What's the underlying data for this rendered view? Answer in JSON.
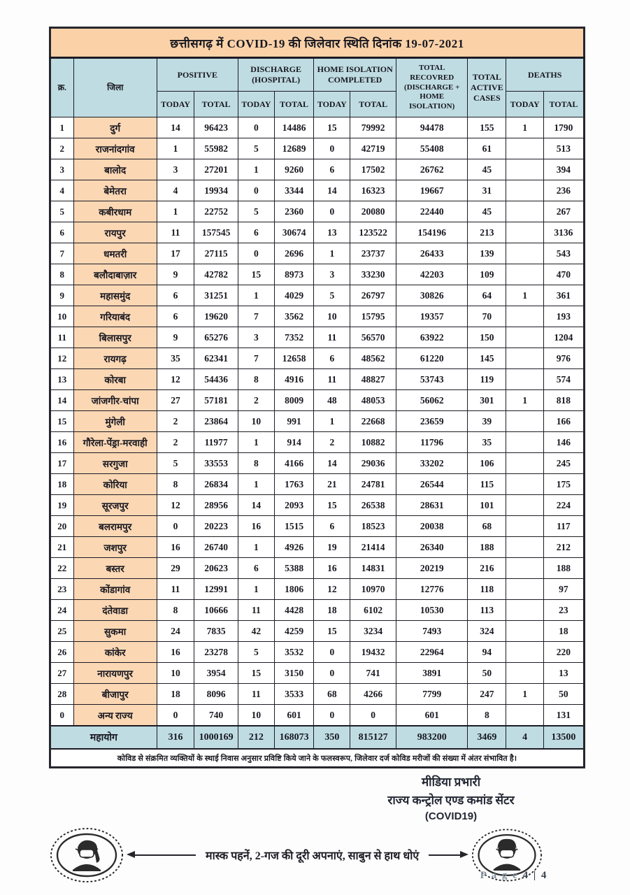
{
  "title": "छत्तीसगढ़ में COVID-19 की जिलेवार स्थिति दिनांक 19-07-2021",
  "colors": {
    "title_peach": "#FBD2A8",
    "district_peach": "#FBD7B4",
    "header_blue": "#BFDCE2",
    "border_dark": "#1c1c24"
  },
  "header": {
    "sn": "क्र.",
    "district": "जिला",
    "positive": "POSITIVE",
    "discharge": "DISCHARGE\n(HOSPITAL)",
    "home_isolation": "HOME ISOLATION\nCOMPLETED",
    "recovered": "TOTAL\nRECOVRED\n(DISCHARGE +\nHOME ISOLATION)",
    "active": "TOTAL\nACTIVE\nCASES",
    "deaths": "DEATHS",
    "today": "TODAY",
    "total": "TOTAL"
  },
  "rows": [
    [
      "1",
      "दुर्ग",
      "14",
      "96423",
      "0",
      "14486",
      "15",
      "79992",
      "94478",
      "155",
      "1",
      "1790"
    ],
    [
      "2",
      "राजनांदगांव",
      "1",
      "55982",
      "5",
      "12689",
      "0",
      "42719",
      "55408",
      "61",
      "",
      "513"
    ],
    [
      "3",
      "बालोद",
      "3",
      "27201",
      "1",
      "9260",
      "6",
      "17502",
      "26762",
      "45",
      "",
      "394"
    ],
    [
      "4",
      "बेमेतरा",
      "4",
      "19934",
      "0",
      "3344",
      "14",
      "16323",
      "19667",
      "31",
      "",
      "236"
    ],
    [
      "5",
      "कबीरधाम",
      "1",
      "22752",
      "5",
      "2360",
      "0",
      "20080",
      "22440",
      "45",
      "",
      "267"
    ],
    [
      "6",
      "रायपुर",
      "11",
      "157545",
      "6",
      "30674",
      "13",
      "123522",
      "154196",
      "213",
      "",
      "3136"
    ],
    [
      "7",
      "धमतरी",
      "17",
      "27115",
      "0",
      "2696",
      "1",
      "23737",
      "26433",
      "139",
      "",
      "543"
    ],
    [
      "8",
      "बलौदाबाज़ार",
      "9",
      "42782",
      "15",
      "8973",
      "3",
      "33230",
      "42203",
      "109",
      "",
      "470"
    ],
    [
      "9",
      "महासमुंद",
      "6",
      "31251",
      "1",
      "4029",
      "5",
      "26797",
      "30826",
      "64",
      "1",
      "361"
    ],
    [
      "10",
      "गरियाबंद",
      "6",
      "19620",
      "7",
      "3562",
      "10",
      "15795",
      "19357",
      "70",
      "",
      "193"
    ],
    [
      "11",
      "बिलासपुर",
      "9",
      "65276",
      "3",
      "7352",
      "11",
      "56570",
      "63922",
      "150",
      "",
      "1204"
    ],
    [
      "12",
      "रायगढ़",
      "35",
      "62341",
      "7",
      "12658",
      "6",
      "48562",
      "61220",
      "145",
      "",
      "976"
    ],
    [
      "13",
      "कोरबा",
      "12",
      "54436",
      "8",
      "4916",
      "11",
      "48827",
      "53743",
      "119",
      "",
      "574"
    ],
    [
      "14",
      "जांजगीर-चांपा",
      "27",
      "57181",
      "2",
      "8009",
      "48",
      "48053",
      "56062",
      "301",
      "1",
      "818"
    ],
    [
      "15",
      "मुंगेली",
      "2",
      "23864",
      "10",
      "991",
      "1",
      "22668",
      "23659",
      "39",
      "",
      "166"
    ],
    [
      "16",
      "गौरेला-पेंड्रा-मरवाही",
      "2",
      "11977",
      "1",
      "914",
      "2",
      "10882",
      "11796",
      "35",
      "",
      "146"
    ],
    [
      "17",
      "सरगुजा",
      "5",
      "33553",
      "8",
      "4166",
      "14",
      "29036",
      "33202",
      "106",
      "",
      "245"
    ],
    [
      "18",
      "कोरिया",
      "8",
      "26834",
      "1",
      "1763",
      "21",
      "24781",
      "26544",
      "115",
      "",
      "175"
    ],
    [
      "19",
      "सूरजपुर",
      "12",
      "28956",
      "14",
      "2093",
      "15",
      "26538",
      "28631",
      "101",
      "",
      "224"
    ],
    [
      "20",
      "बलरामपुर",
      "0",
      "20223",
      "16",
      "1515",
      "6",
      "18523",
      "20038",
      "68",
      "",
      "117"
    ],
    [
      "21",
      "जशपुर",
      "16",
      "26740",
      "1",
      "4926",
      "19",
      "21414",
      "26340",
      "188",
      "",
      "212"
    ],
    [
      "22",
      "बस्तर",
      "29",
      "20623",
      "6",
      "5388",
      "16",
      "14831",
      "20219",
      "216",
      "",
      "188"
    ],
    [
      "23",
      "कोंडागांव",
      "11",
      "12991",
      "1",
      "1806",
      "12",
      "10970",
      "12776",
      "118",
      "",
      "97"
    ],
    [
      "24",
      "दंतेवाडा",
      "8",
      "10666",
      "11",
      "4428",
      "18",
      "6102",
      "10530",
      "113",
      "",
      "23"
    ],
    [
      "25",
      "सुकमा",
      "24",
      "7835",
      "42",
      "4259",
      "15",
      "3234",
      "7493",
      "324",
      "",
      "18"
    ],
    [
      "26",
      "कांकेर",
      "16",
      "23278",
      "5",
      "3532",
      "0",
      "19432",
      "22964",
      "94",
      "",
      "220"
    ],
    [
      "27",
      "नारायणपुर",
      "10",
      "3954",
      "15",
      "3150",
      "0",
      "741",
      "3891",
      "50",
      "",
      "13"
    ],
    [
      "28",
      "बीजापुर",
      "18",
      "8096",
      "11",
      "3533",
      "68",
      "4266",
      "7799",
      "247",
      "1",
      "50"
    ],
    [
      "0",
      "अन्य राज्य",
      "0",
      "740",
      "10",
      "601",
      "0",
      "0",
      "601",
      "8",
      "",
      "131"
    ]
  ],
  "total_row": [
    "महायोग",
    "316",
    "1000169",
    "212",
    "168073",
    "350",
    "815127",
    "983200",
    "3469",
    "4",
    "13500"
  ],
  "footer_note": "कोविड से संक्रमित व्यक्तियों के स्थाई निवास अनुसार प्रविष्टि किये जाने के फलस्वरूप, जिलेवार दर्ज कोविड मरीजों की संख्या में अंतर संभावित है।",
  "signature": {
    "line1": "मीडिया प्रभारी",
    "line2": "राज्य कन्ट्रोल एण्ड कमांड सेंटर",
    "line3": "(COVID19)"
  },
  "banner": {
    "text": "मास्क पहनें, 2-गज की दूरी अपनाएं, साबुन से हाथ धोएं",
    "left_icon": "masked-woman-icon",
    "right_icon": "masked-man-icon"
  },
  "page_label_prefix": "P a g e",
  "page_label_number": "4 | 4"
}
